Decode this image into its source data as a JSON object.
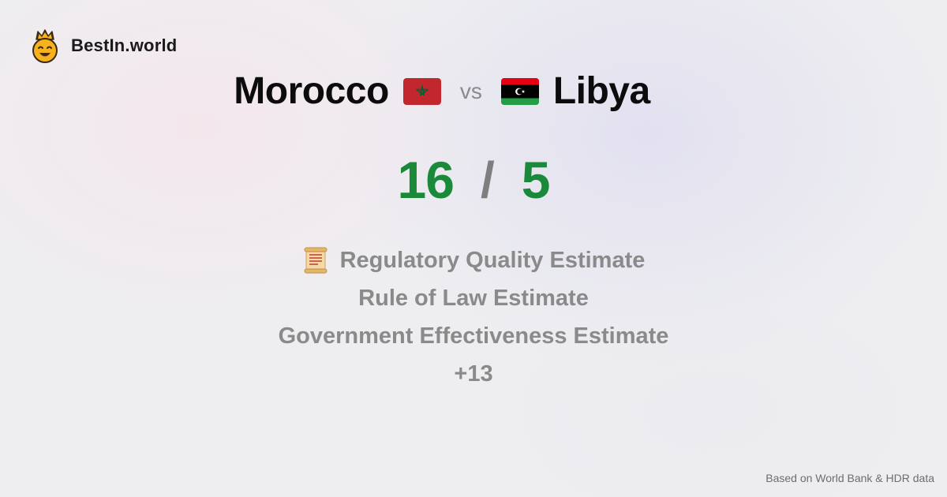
{
  "brand": {
    "name": "BestIn.world",
    "logo_icon": "crown-smiley-icon"
  },
  "comparison": {
    "left_country": "Morocco",
    "right_country": "Libya",
    "vs_label": "vs",
    "left_flag_icon": "morocco-flag-icon",
    "right_flag_icon": "libya-flag-icon"
  },
  "scores": {
    "left": "16",
    "separator": "/",
    "right": "5",
    "color": "#1a8a3a"
  },
  "metrics": {
    "icon": "scroll-icon",
    "items": [
      "Regulatory Quality Estimate",
      "Rule of Law Estimate",
      "Government Effectiveness Estimate"
    ],
    "more": "+13"
  },
  "footer": {
    "source": "Based on World Bank & HDR data"
  }
}
